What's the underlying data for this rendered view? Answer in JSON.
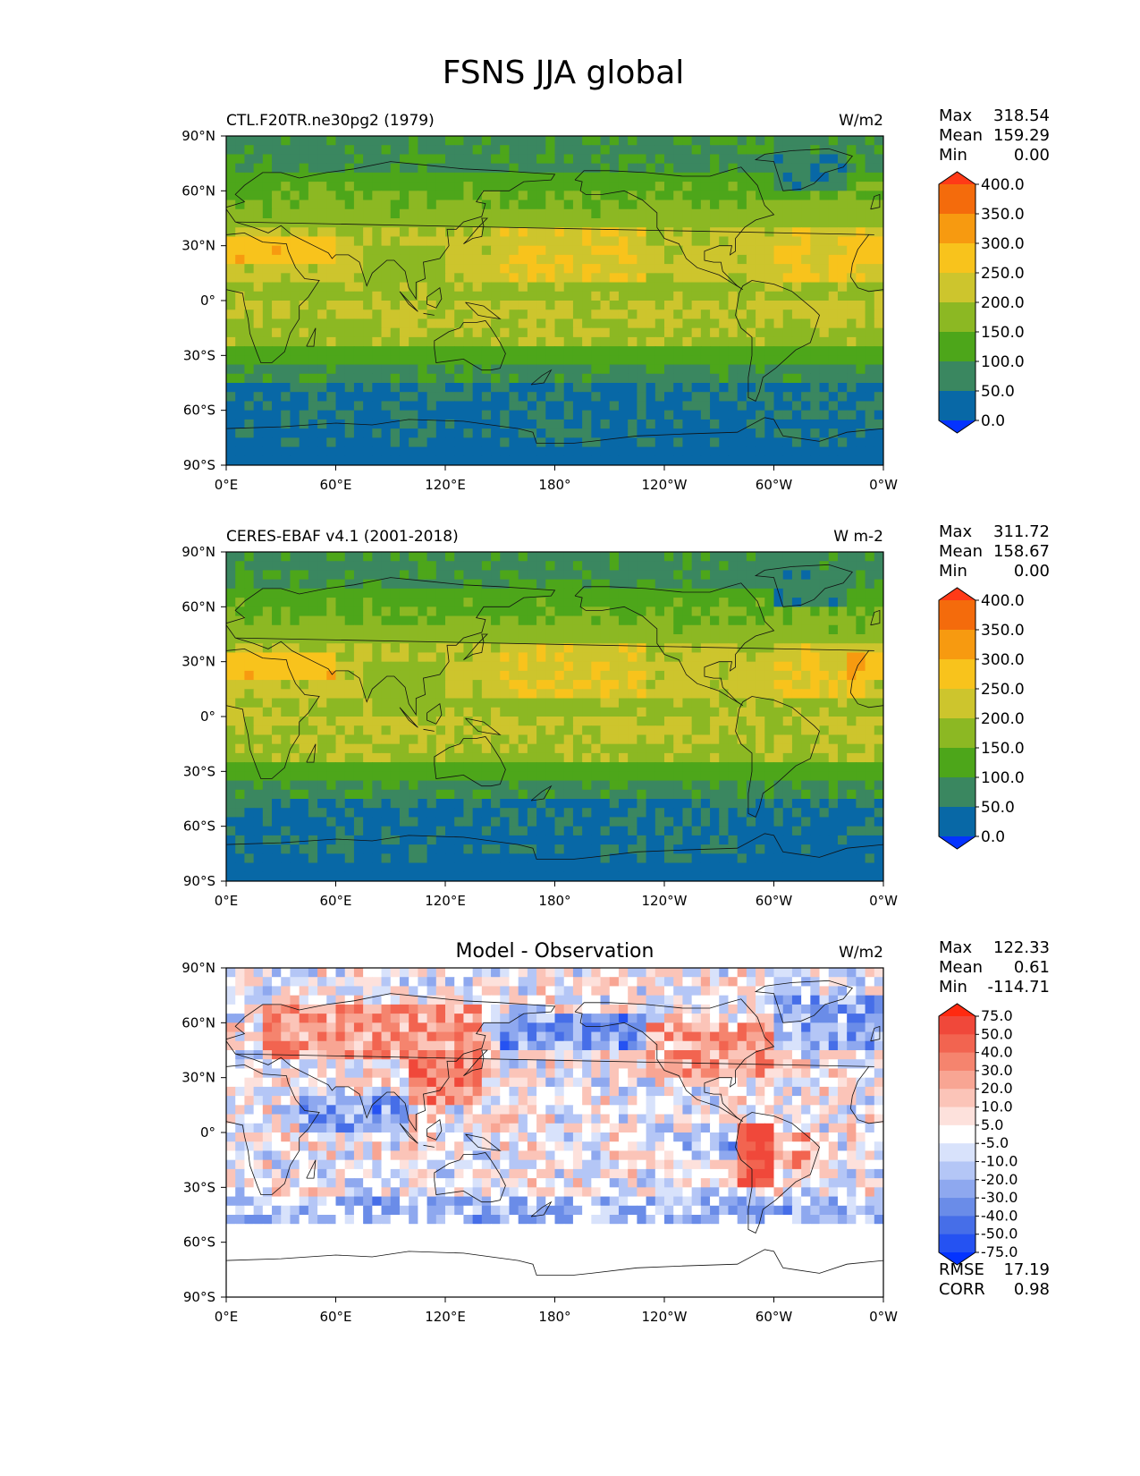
{
  "title": "FSNS JJA global",
  "lat_ticks": [
    "90°N",
    "60°N",
    "30°N",
    "0°",
    "30°S",
    "60°S",
    "90°S"
  ],
  "lon_ticks": [
    "0°E",
    "60°E",
    "120°E",
    "180°",
    "120°W",
    "60°W",
    "0°W"
  ],
  "chart_data": [
    {
      "type": "heatmap",
      "name": "model",
      "left_title": "CTL.F20TR.ne30pg2 (1979)",
      "center_title": "",
      "units": "W/m2",
      "stats": [
        {
          "label": "Max",
          "value": "318.54"
        },
        {
          "label": "Mean",
          "value": "159.29"
        },
        {
          "label": "Min",
          "value": "0.00"
        }
      ],
      "colorbar": {
        "levels": [
          "0.0",
          "50.0",
          "100.0",
          "150.0",
          "200.0",
          "250.0",
          "300.0",
          "350.0",
          "400.0"
        ],
        "colors": [
          "#0433ff",
          "#0868a6",
          "#3a8760",
          "#4da61a",
          "#8cb823",
          "#cdc52d",
          "#f8c31c",
          "#f79a10",
          "#f46b0c",
          "#ff3a17"
        ]
      },
      "xlim": [
        0,
        360
      ],
      "ylim": [
        -90,
        90
      ]
    },
    {
      "type": "heatmap",
      "name": "observation",
      "left_title": "CERES-EBAF v4.1 (2001-2018)",
      "center_title": "",
      "units": "W m-2",
      "stats": [
        {
          "label": "Max",
          "value": "311.72"
        },
        {
          "label": "Mean",
          "value": "158.67"
        },
        {
          "label": "Min",
          "value": "0.00"
        }
      ],
      "colorbar": {
        "levels": [
          "0.0",
          "50.0",
          "100.0",
          "150.0",
          "200.0",
          "250.0",
          "300.0",
          "350.0",
          "400.0"
        ],
        "colors": [
          "#0433ff",
          "#0868a6",
          "#3a8760",
          "#4da61a",
          "#8cb823",
          "#cdc52d",
          "#f8c31c",
          "#f79a10",
          "#f46b0c",
          "#ff3a17"
        ]
      },
      "xlim": [
        0,
        360
      ],
      "ylim": [
        -90,
        90
      ]
    },
    {
      "type": "heatmap",
      "name": "difference",
      "left_title": "",
      "center_title": "Model - Observation",
      "units": "W/m2",
      "stats": [
        {
          "label": "Max",
          "value": "122.33"
        },
        {
          "label": "Mean",
          "value": "0.61"
        },
        {
          "label": "Min",
          "value": "-114.71"
        }
      ],
      "metrics": [
        {
          "label": "RMSE",
          "value": "17.19"
        },
        {
          "label": "CORR",
          "value": "0.98"
        }
      ],
      "colorbar": {
        "levels": [
          "-75.0",
          "-50.0",
          "-40.0",
          "-30.0",
          "-20.0",
          "-10.0",
          "-5.0",
          "5.0",
          "10.0",
          "20.0",
          "30.0",
          "40.0",
          "50.0",
          "75.0"
        ],
        "colors": [
          "#0433ff",
          "#2552f2",
          "#466ee8",
          "#6a8ce8",
          "#8ea8ef",
          "#b4c6f6",
          "#d8e2fb",
          "#ffffff",
          "#fde1dc",
          "#fbc4b8",
          "#f8a593",
          "#f5846e",
          "#f26450",
          "#f0483a",
          "#ff2a10"
        ]
      },
      "xlim": [
        0,
        360
      ],
      "ylim": [
        -90,
        90
      ]
    }
  ]
}
